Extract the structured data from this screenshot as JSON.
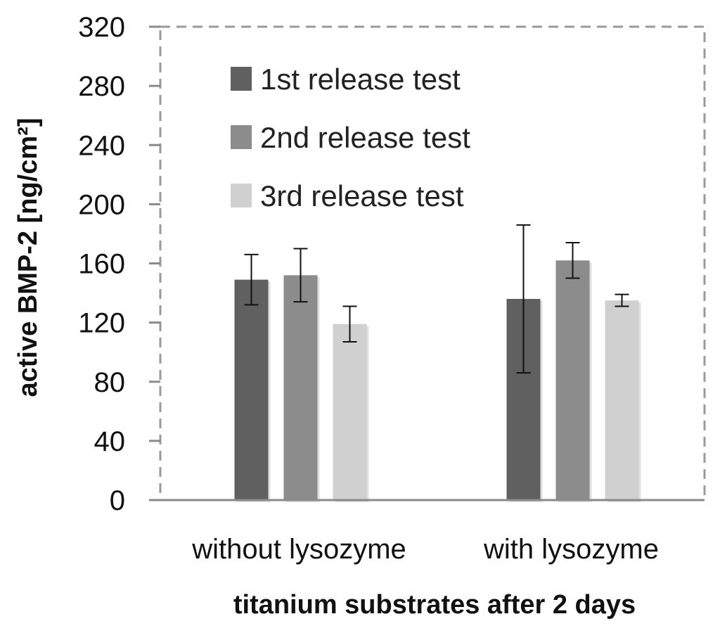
{
  "chart_data": {
    "type": "bar",
    "title": "",
    "xlabel": "titanium substrates after 2 days",
    "ylabel": "active BMP-2  [ng/cm²]",
    "categories": [
      "without lysozyme",
      "with lysozyme"
    ],
    "ylim": [
      0,
      320
    ],
    "yticks": [
      0,
      40,
      80,
      120,
      160,
      200,
      240,
      280,
      320
    ],
    "legend_position": "top-left inside plot",
    "grid": false,
    "series": [
      {
        "name": "1st release test",
        "color": "#5f605f",
        "values": [
          149,
          136
        ],
        "errors": [
          17,
          50
        ]
      },
      {
        "name": "2nd release test",
        "color": "#8c8c8c",
        "values": [
          152,
          162
        ],
        "errors": [
          18,
          12
        ]
      },
      {
        "name": "3rd release test",
        "color": "#d0d0d0",
        "values": [
          119,
          135
        ],
        "errors": [
          12,
          4
        ]
      }
    ]
  }
}
